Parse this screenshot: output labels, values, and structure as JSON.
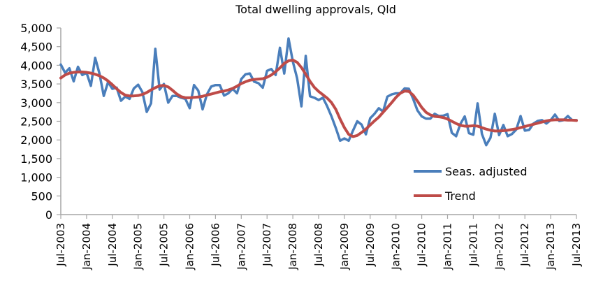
{
  "chart_data": {
    "type": "line",
    "title": "Total dwelling approvals, Qld",
    "xlabel": "",
    "ylabel": "",
    "ylim": [
      0,
      5000
    ],
    "yticks": [
      0,
      500,
      1000,
      1500,
      2000,
      2500,
      3000,
      3500,
      4000,
      4500,
      5000
    ],
    "ytick_labels": [
      "0",
      "500",
      "1,000",
      "1,500",
      "2,000",
      "2,500",
      "3,000",
      "3,500",
      "4,000",
      "4,500",
      "5,000"
    ],
    "x_start": "Jul-2003",
    "x_end": "Jul-2013",
    "x_frequency": "monthly",
    "xtick_labels": [
      "Jul-2003",
      "Jan-2004",
      "Jul-2004",
      "Jan-2005",
      "Jul-2005",
      "Jan-2006",
      "Jul-2006",
      "Jan-2007",
      "Jul-2007",
      "Jan-2008",
      "Jul-2008",
      "Jan-2009",
      "Jul-2009",
      "Jan-2010",
      "Jul-2010",
      "Jan-2011",
      "Jul-2011",
      "Jan-2012",
      "Jul-2012",
      "Jan-2013",
      "Jul-2013"
    ],
    "xtick_every_months": 6,
    "grid": false,
    "legend_position": "lower-right",
    "series": [
      {
        "name": "Seas. adjusted",
        "color": "#4a7ebb",
        "values": [
          4020,
          3800,
          3920,
          3570,
          3960,
          3740,
          3800,
          3450,
          4200,
          3780,
          3180,
          3550,
          3370,
          3400,
          3050,
          3160,
          3100,
          3380,
          3480,
          3280,
          2750,
          2980,
          4440,
          3350,
          3500,
          3000,
          3180,
          3180,
          3130,
          3100,
          2850,
          3470,
          3320,
          2820,
          3220,
          3430,
          3470,
          3470,
          3190,
          3250,
          3370,
          3250,
          3630,
          3760,
          3780,
          3560,
          3520,
          3400,
          3850,
          3900,
          3740,
          4470,
          3780,
          4720,
          4100,
          3650,
          2900,
          4250,
          3170,
          3130,
          3070,
          3130,
          2900,
          2630,
          2320,
          1980,
          2040,
          1980,
          2250,
          2500,
          2410,
          2150,
          2580,
          2700,
          2850,
          2760,
          3160,
          3220,
          3250,
          3250,
          3380,
          3370,
          3100,
          2790,
          2630,
          2570,
          2570,
          2700,
          2640,
          2650,
          2690,
          2190,
          2100,
          2430,
          2630,
          2180,
          2140,
          2980,
          2160,
          1860,
          2060,
          2700,
          2130,
          2400,
          2100,
          2160,
          2280,
          2640,
          2250,
          2270,
          2440,
          2510,
          2530,
          2440,
          2530,
          2680,
          2510,
          2530,
          2640,
          2530,
          2530
        ]
      },
      {
        "name": "Trend",
        "color": "#be4b48",
        "values": [
          3660,
          3740,
          3790,
          3810,
          3820,
          3820,
          3810,
          3790,
          3760,
          3720,
          3660,
          3580,
          3480,
          3370,
          3270,
          3200,
          3180,
          3180,
          3190,
          3220,
          3270,
          3340,
          3400,
          3450,
          3460,
          3420,
          3330,
          3230,
          3160,
          3130,
          3130,
          3140,
          3150,
          3170,
          3200,
          3230,
          3260,
          3290,
          3310,
          3340,
          3380,
          3440,
          3510,
          3560,
          3600,
          3620,
          3630,
          3640,
          3680,
          3740,
          3830,
          3930,
          4050,
          4120,
          4140,
          4080,
          3940,
          3760,
          3570,
          3410,
          3300,
          3210,
          3120,
          3000,
          2820,
          2560,
          2330,
          2150,
          2090,
          2120,
          2200,
          2290,
          2400,
          2510,
          2610,
          2740,
          2870,
          3000,
          3140,
          3250,
          3310,
          3300,
          3200,
          3040,
          2870,
          2740,
          2670,
          2630,
          2620,
          2600,
          2560,
          2500,
          2440,
          2390,
          2370,
          2370,
          2380,
          2370,
          2330,
          2290,
          2260,
          2240,
          2240,
          2250,
          2260,
          2280,
          2300,
          2330,
          2360,
          2390,
          2420,
          2450,
          2480,
          2510,
          2530,
          2540,
          2540,
          2540,
          2530,
          2530,
          2520
        ]
      }
    ]
  },
  "colors": {
    "axis": "#a6a6a6",
    "seas_adjusted": "#4a7ebb",
    "trend": "#be4b48"
  }
}
